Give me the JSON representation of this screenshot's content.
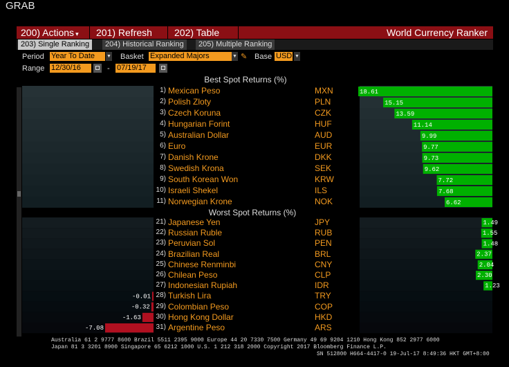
{
  "window_title": "GRAB",
  "menu": {
    "actions": "200) Actions",
    "refresh": "201) Refresh",
    "table": "202) Table",
    "title": "World Currency Ranker"
  },
  "tabs": [
    {
      "label": "203) Single Ranking",
      "active": true
    },
    {
      "label": "204) Historical Ranking",
      "active": false
    },
    {
      "label": "205) Multiple Ranking",
      "active": false
    }
  ],
  "controls": {
    "period_label": "Period",
    "period_value": "Year To Date",
    "basket_label": "Basket",
    "basket_value": "Expanded Majors",
    "base_label": "Base",
    "base_value": "USD",
    "range_label": "Range",
    "range_start": "12/30/16",
    "range_sep": "-",
    "range_end": "07/19/17"
  },
  "colors": {
    "positive": "#00b000",
    "negative": "#b01020",
    "field": "#f39a1f",
    "menu": "#8b0f14"
  },
  "best": {
    "title": "Best Spot Returns (%)",
    "rows": [
      {
        "rank": "1)",
        "name": "Mexican Peso",
        "code": "MXN",
        "value": 18.61
      },
      {
        "rank": "2)",
        "name": "Polish Zloty",
        "code": "PLN",
        "value": 15.15
      },
      {
        "rank": "3)",
        "name": "Czech Koruna",
        "code": "CZK",
        "value": 13.59
      },
      {
        "rank": "4)",
        "name": "Hungarian Forint",
        "code": "HUF",
        "value": 11.14
      },
      {
        "rank": "5)",
        "name": "Australian Dollar",
        "code": "AUD",
        "value": 9.99
      },
      {
        "rank": "6)",
        "name": "Euro",
        "code": "EUR",
        "value": 9.77
      },
      {
        "rank": "7)",
        "name": "Danish Krone",
        "code": "DKK",
        "value": 9.73
      },
      {
        "rank": "8)",
        "name": "Swedish Krona",
        "code": "SEK",
        "value": 9.62
      },
      {
        "rank": "9)",
        "name": "South Korean Won",
        "code": "KRW",
        "value": 7.72
      },
      {
        "rank": "10)",
        "name": "Israeli Shekel",
        "code": "ILS",
        "value": 7.68
      },
      {
        "rank": "11)",
        "name": "Norwegian Krone",
        "code": "NOK",
        "value": 6.62
      }
    ]
  },
  "worst": {
    "title": "Worst Spot Returns (%)",
    "rows": [
      {
        "rank": "21)",
        "name": "Japanese Yen",
        "code": "JPY",
        "value": 1.49
      },
      {
        "rank": "22)",
        "name": "Russian Ruble",
        "code": "RUB",
        "value": 1.55
      },
      {
        "rank": "23)",
        "name": "Peruvian Sol",
        "code": "PEN",
        "value": 1.48
      },
      {
        "rank": "24)",
        "name": "Brazilian Real",
        "code": "BRL",
        "value": 2.37
      },
      {
        "rank": "25)",
        "name": "Chinese Renminbi",
        "code": "CNY",
        "value": 2.04
      },
      {
        "rank": "26)",
        "name": "Chilean Peso",
        "code": "CLP",
        "value": 2.3
      },
      {
        "rank": "27)",
        "name": "Indonesian Rupiah",
        "code": "IDR",
        "value": 1.23
      },
      {
        "rank": "28)",
        "name": "Turkish Lira",
        "code": "TRY",
        "value": -0.01
      },
      {
        "rank": "29)",
        "name": "Colombian Peso",
        "code": "COP",
        "value": -0.32
      },
      {
        "rank": "30)",
        "name": "Hong Kong Dollar",
        "code": "HKD",
        "value": -1.63
      },
      {
        "rank": "31)",
        "name": "Argentine Peso",
        "code": "ARS",
        "value": -7.08
      }
    ]
  },
  "footer": {
    "line1": "Australia 61 2 9777 8600 Brazil 5511 2395 9000 Europe 44 20 7330 7500 Germany 49 69 9204 1210 Hong Kong 852 2977 6000",
    "line2": "Japan 81 3 3201 8900       Singapore 65 6212 1000      U.S. 1 212 318 2000        Copyright 2017 Bloomberg Finance L.P.",
    "line3": "SN 512800 H664-4417-0 19-Jul-17  8:49:36 HKT  GMT+8:00"
  }
}
